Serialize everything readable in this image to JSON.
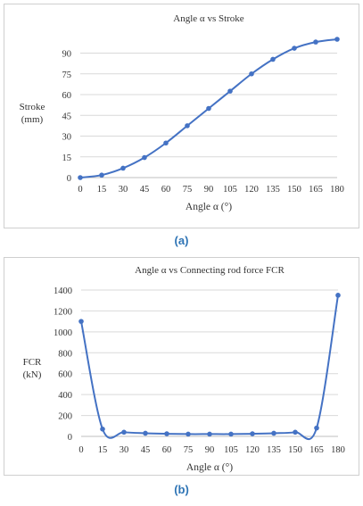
{
  "captions": [
    "(a)",
    "(b)"
  ],
  "chart_data": [
    {
      "type": "line",
      "title": "Angle α vs Stroke",
      "xlabel": "Angle α (°)",
      "ylabel": [
        "Stroke",
        "(mm)"
      ],
      "ylim": [
        0,
        100
      ],
      "yticks": [
        0,
        15,
        30,
        45,
        60,
        75,
        90
      ],
      "x": [
        0,
        15,
        30,
        45,
        60,
        75,
        90,
        105,
        120,
        135,
        150,
        165,
        180
      ],
      "series": [
        {
          "values": [
            0,
            1.8,
            6.8,
            14.5,
            25,
            37.5,
            50,
            62.5,
            75,
            85.5,
            93.5,
            98,
            100
          ]
        }
      ],
      "color": "#4472c4",
      "grid": true,
      "smooth": true
    },
    {
      "type": "line",
      "title": "Angle α vs Connecting rod force FCR",
      "xlabel": "Angle α (°)",
      "ylabel": [
        "FCR",
        "(kN)"
      ],
      "ylim": [
        0,
        1400
      ],
      "yticks": [
        0,
        200,
        400,
        600,
        800,
        1000,
        1200,
        1400
      ],
      "x": [
        0,
        15,
        30,
        45,
        60,
        75,
        90,
        105,
        120,
        135,
        150,
        165,
        180
      ],
      "series": [
        {
          "values": [
            1100,
            70,
            40,
            30,
            25,
            22,
            22,
            22,
            25,
            30,
            40,
            80,
            1350
          ]
        }
      ],
      "color": "#4472c4",
      "grid": true,
      "smooth": true
    }
  ]
}
